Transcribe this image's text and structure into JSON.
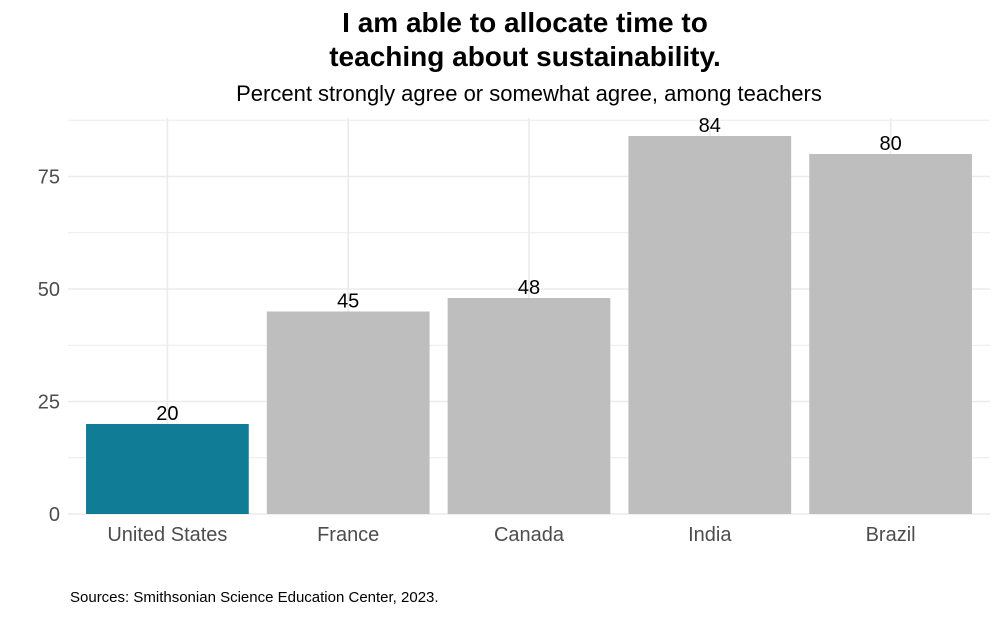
{
  "chart_data": {
    "type": "bar",
    "title": "I am able to allocate time to\nteaching about sustainability.",
    "subtitle": "Percent strongly agree or somewhat agree, among teachers",
    "categories": [
      "United States",
      "France",
      "Canada",
      "India",
      "Brazil"
    ],
    "values": [
      20,
      45,
      48,
      84,
      80
    ],
    "data_labels": [
      "20",
      "45",
      "48",
      "84",
      "80"
    ],
    "xlabel": "",
    "ylabel": "",
    "ylim": [
      0,
      88
    ],
    "yticks": [
      0,
      25,
      50,
      75
    ],
    "ytick_labels": [
      "0",
      "25",
      "50",
      "75"
    ],
    "grid": true,
    "legend": "none",
    "colors": {
      "highlight": "#117c96",
      "default": "#bebebe",
      "grid": "#ebebeb"
    },
    "highlight_index": 0
  },
  "source_note": "Sources: Smithsonian Science Education Center, 2023."
}
